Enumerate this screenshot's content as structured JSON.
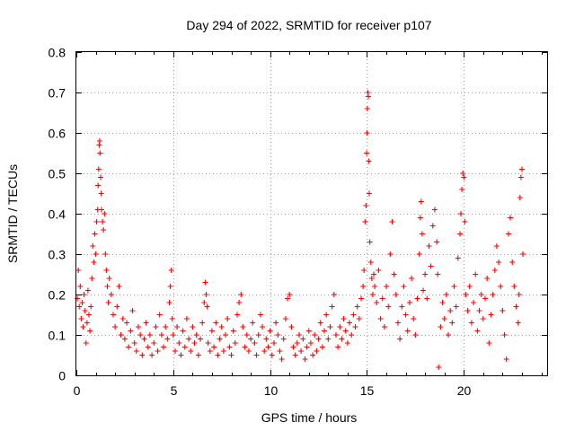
{
  "chart_data": {
    "type": "scatter",
    "title": "Day 294 of 2022, SRMTID for receiver p107",
    "xlabel": "GPS time / hours",
    "ylabel": "SRMTID / TECUs",
    "xlim": [
      0,
      24.3
    ],
    "ylim": [
      0,
      0.8
    ],
    "x_ticks": [
      0,
      5,
      10,
      15,
      20
    ],
    "x_tick_labels": [
      "0",
      "5",
      "10",
      "15",
      "20"
    ],
    "y_ticks": [
      0,
      0.1,
      0.2,
      0.3,
      0.4,
      0.5,
      0.6,
      0.7,
      0.8
    ],
    "y_tick_labels": [
      "0",
      "0.1",
      "0.2",
      "0.3",
      "0.4",
      "0.5",
      "0.6",
      "0.7",
      "0.8"
    ],
    "grid": true,
    "marker": "plus",
    "series": [
      {
        "name": "SRMTID",
        "color": "#ff0000",
        "points": [
          [
            0.05,
            0.19
          ],
          [
            0.1,
            0.26
          ],
          [
            0.15,
            0.17
          ],
          [
            0.2,
            0.22
          ],
          [
            0.25,
            0.14
          ],
          [
            0.3,
            0.18
          ],
          [
            0.35,
            0.12
          ],
          [
            0.4,
            0.2
          ],
          [
            0.45,
            0.16
          ],
          [
            0.5,
            0.08
          ],
          [
            0.55,
            0.13
          ],
          [
            0.6,
            0.21
          ],
          [
            0.65,
            0.15
          ],
          [
            0.7,
            0.11
          ],
          [
            0.75,
            0.17
          ],
          [
            0.8,
            0.24
          ],
          [
            0.85,
            0.32
          ],
          [
            0.9,
            0.28
          ],
          [
            0.95,
            0.35
          ],
          [
            1.0,
            0.3
          ],
          [
            1.05,
            0.38
          ],
          [
            1.1,
            0.41
          ],
          [
            1.12,
            0.47
          ],
          [
            1.15,
            0.51
          ],
          [
            1.18,
            0.57
          ],
          [
            1.2,
            0.58
          ],
          [
            1.22,
            0.55
          ],
          [
            1.25,
            0.49
          ],
          [
            1.28,
            0.45
          ],
          [
            1.3,
            0.41
          ],
          [
            1.35,
            0.38
          ],
          [
            1.4,
            0.36
          ],
          [
            1.45,
            0.4
          ],
          [
            1.5,
            0.3
          ],
          [
            1.55,
            0.26
          ],
          [
            1.6,
            0.22
          ],
          [
            1.65,
            0.18
          ],
          [
            1.7,
            0.24
          ],
          [
            1.8,
            0.2
          ],
          [
            1.9,
            0.15
          ],
          [
            2.0,
            0.12
          ],
          [
            2.1,
            0.17
          ],
          [
            2.2,
            0.22
          ],
          [
            2.3,
            0.1
          ],
          [
            2.4,
            0.14
          ],
          [
            2.5,
            0.09
          ],
          [
            2.6,
            0.13
          ],
          [
            2.7,
            0.07
          ],
          [
            2.8,
            0.11
          ],
          [
            2.9,
            0.16
          ],
          [
            3.0,
            0.08
          ],
          [
            3.1,
            0.06
          ],
          [
            3.2,
            0.12
          ],
          [
            3.3,
            0.1
          ],
          [
            3.4,
            0.05
          ],
          [
            3.5,
            0.09
          ],
          [
            3.6,
            0.13
          ],
          [
            3.7,
            0.07
          ],
          [
            3.8,
            0.1
          ],
          [
            3.9,
            0.05
          ],
          [
            4.0,
            0.08
          ],
          [
            4.1,
            0.12
          ],
          [
            4.2,
            0.06
          ],
          [
            4.3,
            0.15
          ],
          [
            4.4,
            0.1
          ],
          [
            4.5,
            0.07
          ],
          [
            4.6,
            0.12
          ],
          [
            4.7,
            0.09
          ],
          [
            4.8,
            0.18
          ],
          [
            4.85,
            0.22
          ],
          [
            4.9,
            0.26
          ],
          [
            4.95,
            0.14
          ],
          [
            5.0,
            0.1
          ],
          [
            5.1,
            0.06
          ],
          [
            5.2,
            0.12
          ],
          [
            5.3,
            0.08
          ],
          [
            5.4,
            0.05
          ],
          [
            5.5,
            0.11
          ],
          [
            5.6,
            0.07
          ],
          [
            5.7,
            0.14
          ],
          [
            5.8,
            0.09
          ],
          [
            5.9,
            0.06
          ],
          [
            6.0,
            0.12
          ],
          [
            6.1,
            0.08
          ],
          [
            6.2,
            0.1
          ],
          [
            6.3,
            0.05
          ],
          [
            6.4,
            0.09
          ],
          [
            6.5,
            0.13
          ],
          [
            6.6,
            0.18
          ],
          [
            6.65,
            0.23
          ],
          [
            6.7,
            0.2
          ],
          [
            6.75,
            0.17
          ],
          [
            6.8,
            0.08
          ],
          [
            6.9,
            0.06
          ],
          [
            7.0,
            0.11
          ],
          [
            7.1,
            0.07
          ],
          [
            7.2,
            0.13
          ],
          [
            7.3,
            0.05
          ],
          [
            7.4,
            0.09
          ],
          [
            7.5,
            0.12
          ],
          [
            7.6,
            0.06
          ],
          [
            7.7,
            0.1
          ],
          [
            7.8,
            0.14
          ],
          [
            7.9,
            0.07
          ],
          [
            8.0,
            0.05
          ],
          [
            8.1,
            0.11
          ],
          [
            8.2,
            0.08
          ],
          [
            8.3,
            0.15
          ],
          [
            8.4,
            0.18
          ],
          [
            8.5,
            0.2
          ],
          [
            8.6,
            0.12
          ],
          [
            8.7,
            0.07
          ],
          [
            8.8,
            0.1
          ],
          [
            8.9,
            0.06
          ],
          [
            9.0,
            0.09
          ],
          [
            9.1,
            0.13
          ],
          [
            9.2,
            0.08
          ],
          [
            9.3,
            0.05
          ],
          [
            9.4,
            0.1
          ],
          [
            9.5,
            0.15
          ],
          [
            9.6,
            0.12
          ],
          [
            9.7,
            0.06
          ],
          [
            9.8,
            0.09
          ],
          [
            9.9,
            0.07
          ],
          [
            10.0,
            0.11
          ],
          [
            10.1,
            0.05
          ],
          [
            10.2,
            0.08
          ],
          [
            10.3,
            0.13
          ],
          [
            10.4,
            0.1
          ],
          [
            10.5,
            0.06
          ],
          [
            10.6,
            0.04
          ],
          [
            10.7,
            0.09
          ],
          [
            10.8,
            0.14
          ],
          [
            10.9,
            0.19
          ],
          [
            11.0,
            0.2
          ],
          [
            11.1,
            0.12
          ],
          [
            11.2,
            0.07
          ],
          [
            11.3,
            0.05
          ],
          [
            11.4,
            0.08
          ],
          [
            11.5,
            0.1
          ],
          [
            11.6,
            0.06
          ],
          [
            11.7,
            0.09
          ],
          [
            11.8,
            0.04
          ],
          [
            11.9,
            0.07
          ],
          [
            12.0,
            0.11
          ],
          [
            12.1,
            0.08
          ],
          [
            12.2,
            0.05
          ],
          [
            12.3,
            0.1
          ],
          [
            12.4,
            0.06
          ],
          [
            12.5,
            0.09
          ],
          [
            12.6,
            0.13
          ],
          [
            12.7,
            0.07
          ],
          [
            12.8,
            0.11
          ],
          [
            12.9,
            0.15
          ],
          [
            13.0,
            0.09
          ],
          [
            13.1,
            0.12
          ],
          [
            13.2,
            0.17
          ],
          [
            13.3,
            0.2
          ],
          [
            13.4,
            0.1
          ],
          [
            13.5,
            0.07
          ],
          [
            13.6,
            0.12
          ],
          [
            13.7,
            0.09
          ],
          [
            13.8,
            0.14
          ],
          [
            13.9,
            0.11
          ],
          [
            14.0,
            0.08
          ],
          [
            14.1,
            0.13
          ],
          [
            14.2,
            0.1
          ],
          [
            14.3,
            0.15
          ],
          [
            14.4,
            0.12
          ],
          [
            14.5,
            0.17
          ],
          [
            14.6,
            0.14
          ],
          [
            14.7,
            0.19
          ],
          [
            14.8,
            0.22
          ],
          [
            14.85,
            0.26
          ],
          [
            14.9,
            0.38
          ],
          [
            14.95,
            0.42
          ],
          [
            14.98,
            0.55
          ],
          [
            15.0,
            0.6
          ],
          [
            15.02,
            0.66
          ],
          [
            15.05,
            0.7
          ],
          [
            15.07,
            0.69
          ],
          [
            15.1,
            0.53
          ],
          [
            15.12,
            0.45
          ],
          [
            15.15,
            0.33
          ],
          [
            15.2,
            0.28
          ],
          [
            15.25,
            0.24
          ],
          [
            15.3,
            0.2
          ],
          [
            15.35,
            0.25
          ],
          [
            15.4,
            0.22
          ],
          [
            15.5,
            0.18
          ],
          [
            15.6,
            0.26
          ],
          [
            15.7,
            0.14
          ],
          [
            15.8,
            0.19
          ],
          [
            15.9,
            0.12
          ],
          [
            16.0,
            0.22
          ],
          [
            16.1,
            0.17
          ],
          [
            16.2,
            0.3
          ],
          [
            16.3,
            0.38
          ],
          [
            16.4,
            0.25
          ],
          [
            16.5,
            0.2
          ],
          [
            16.6,
            0.13
          ],
          [
            16.7,
            0.09
          ],
          [
            16.8,
            0.17
          ],
          [
            16.9,
            0.22
          ],
          [
            17.0,
            0.15
          ],
          [
            17.1,
            0.11
          ],
          [
            17.2,
            0.18
          ],
          [
            17.3,
            0.24
          ],
          [
            17.4,
            0.14
          ],
          [
            17.5,
            0.1
          ],
          [
            17.6,
            0.19
          ],
          [
            17.7,
            0.3
          ],
          [
            17.75,
            0.39
          ],
          [
            17.8,
            0.43
          ],
          [
            17.85,
            0.35
          ],
          [
            17.9,
            0.21
          ],
          [
            18.0,
            0.25
          ],
          [
            18.1,
            0.19
          ],
          [
            18.2,
            0.32
          ],
          [
            18.3,
            0.27
          ],
          [
            18.4,
            0.37
          ],
          [
            18.5,
            0.41
          ],
          [
            18.6,
            0.33
          ],
          [
            18.65,
            0.25
          ],
          [
            18.7,
            0.02
          ],
          [
            18.8,
            0.12
          ],
          [
            18.9,
            0.18
          ],
          [
            19.0,
            0.14
          ],
          [
            19.1,
            0.2
          ],
          [
            19.2,
            0.1
          ],
          [
            19.3,
            0.16
          ],
          [
            19.4,
            0.13
          ],
          [
            19.5,
            0.22
          ],
          [
            19.6,
            0.17
          ],
          [
            19.7,
            0.29
          ],
          [
            19.8,
            0.35
          ],
          [
            19.85,
            0.4
          ],
          [
            19.9,
            0.46
          ],
          [
            19.95,
            0.5
          ],
          [
            20.0,
            0.49
          ],
          [
            20.05,
            0.38
          ],
          [
            20.1,
            0.2
          ],
          [
            20.2,
            0.16
          ],
          [
            20.3,
            0.22
          ],
          [
            20.4,
            0.13
          ],
          [
            20.5,
            0.18
          ],
          [
            20.6,
            0.25
          ],
          [
            20.7,
            0.11
          ],
          [
            20.8,
            0.16
          ],
          [
            20.9,
            0.2
          ],
          [
            21.0,
            0.14
          ],
          [
            21.1,
            0.19
          ],
          [
            21.2,
            0.24
          ],
          [
            21.3,
            0.08
          ],
          [
            21.4,
            0.15
          ],
          [
            21.5,
            0.2
          ],
          [
            21.6,
            0.26
          ],
          [
            21.7,
            0.32
          ],
          [
            21.8,
            0.28
          ],
          [
            21.9,
            0.22
          ],
          [
            22.0,
            0.16
          ],
          [
            22.1,
            0.1
          ],
          [
            22.2,
            0.04
          ],
          [
            22.3,
            0.35
          ],
          [
            22.4,
            0.39
          ],
          [
            22.5,
            0.28
          ],
          [
            22.6,
            0.22
          ],
          [
            22.7,
            0.17
          ],
          [
            22.8,
            0.13
          ],
          [
            22.85,
            0.2
          ],
          [
            22.9,
            0.44
          ],
          [
            22.95,
            0.49
          ],
          [
            23.0,
            0.51
          ],
          [
            23.05,
            0.3
          ]
        ]
      }
    ]
  }
}
